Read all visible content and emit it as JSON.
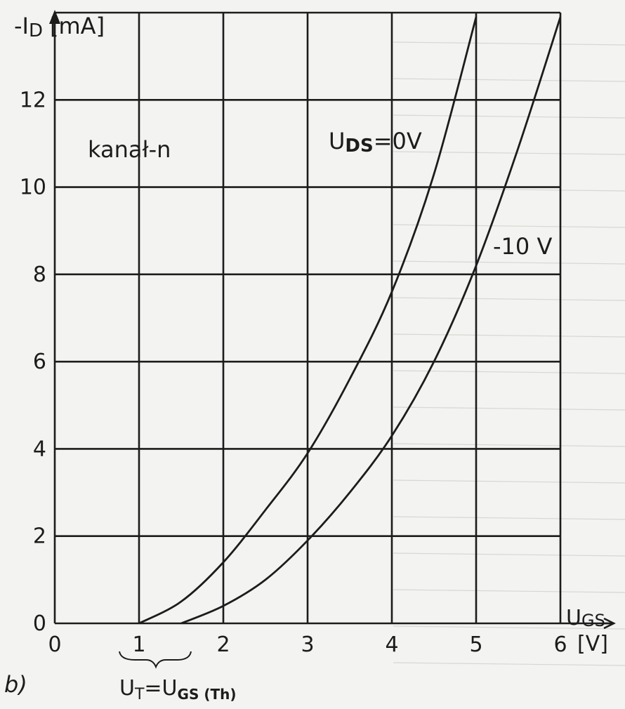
{
  "panel_label": "b)",
  "chart_data": {
    "type": "line",
    "ylabel": "-I",
    "ylabel_sub": "D",
    "yunit": "[mA]",
    "xlabel": "U",
    "xlabel_sub": "GS",
    "xunit": "[V]",
    "xlim": [
      0,
      6
    ],
    "ylim": [
      0,
      14
    ],
    "x_ticks": [
      "0",
      "1",
      "2",
      "3",
      "4",
      "5",
      "6"
    ],
    "y_ticks": [
      "0",
      "2",
      "4",
      "6",
      "8",
      "10",
      "12"
    ],
    "grid": true,
    "annotation_channel": "kanał-n",
    "series": [
      {
        "name": "UDS=0V",
        "label_main": "U",
        "label_sub": "DS",
        "label_rest": "=0V",
        "x": [
          1.0,
          1.5,
          2.0,
          2.5,
          3.0,
          3.5,
          4.0,
          4.5,
          5.0
        ],
        "y": [
          0.0,
          0.5,
          1.4,
          2.6,
          3.9,
          5.6,
          7.6,
          10.3,
          13.9
        ]
      },
      {
        "name": "-10 V",
        "label_main": "-10 V",
        "x": [
          1.5,
          2.0,
          2.5,
          3.0,
          3.5,
          4.0,
          4.5,
          5.0,
          5.5,
          6.0
        ],
        "y": [
          0.0,
          0.4,
          1.0,
          1.9,
          3.0,
          4.3,
          6.0,
          8.2,
          10.9,
          13.9
        ]
      }
    ],
    "threshold_label": {
      "main": "U",
      "sub": "T",
      "eq": "=U",
      "sub2": "GS (Th)"
    }
  }
}
